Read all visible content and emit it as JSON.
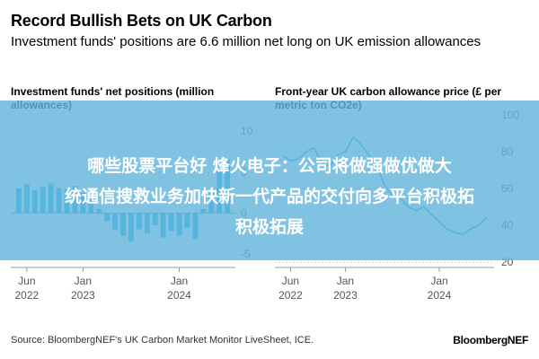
{
  "header": {
    "title": "Record Bullish Bets on UK Carbon",
    "subtitle": "Investment funds' positions are 6.6 million net long on UK emission allowances"
  },
  "chart_data": [
    {
      "type": "bar",
      "title": "Investment funds' net positions (million allowances)",
      "color": "#1ab5e8",
      "y_ticks": [
        "10",
        "5",
        "0",
        "-5"
      ],
      "ylim": [
        -6,
        12
      ],
      "x_ticks": [
        {
          "month": "Jun",
          "year": "2022"
        },
        {
          "month": "Jan",
          "year": "2023"
        },
        {
          "month": "Jan",
          "year": "2024"
        }
      ],
      "x": [
        "2022-05",
        "2022-06",
        "2022-07",
        "2022-08",
        "2022-09",
        "2022-10",
        "2022-11",
        "2022-12",
        "2023-01",
        "2023-02",
        "2023-03",
        "2023-04",
        "2023-05",
        "2023-06",
        "2023-07",
        "2023-08",
        "2023-09",
        "2023-10",
        "2023-11",
        "2023-12",
        "2024-01",
        "2024-02",
        "2024-03",
        "2024-04",
        "2024-05",
        "2024-06",
        "2024-07"
      ],
      "values": [
        3.0,
        3.5,
        2.8,
        3.2,
        3.6,
        3.1,
        2.9,
        3.3,
        2.5,
        1.8,
        0.5,
        -1.0,
        -2.0,
        -2.8,
        -3.5,
        -2.0,
        -2.5,
        -1.5,
        -3.0,
        -2.2,
        -2.8,
        -1.8,
        -3.2,
        0.5,
        2.5,
        5.0,
        6.6
      ]
    },
    {
      "type": "line",
      "title": "Front-year UK carbon allowance price (£ per metric ton CO2e)",
      "color": "#1ab5e8",
      "y_ticks": [
        "100",
        "80",
        "60",
        "40",
        "20"
      ],
      "ylim": [
        20,
        100
      ],
      "x_ticks": [
        {
          "month": "Jun",
          "year": "2022"
        },
        {
          "month": "Jan",
          "year": "2023"
        },
        {
          "month": "Jan",
          "year": "2024"
        }
      ],
      "x": [
        "2022-05",
        "2022-06",
        "2022-07",
        "2022-08",
        "2022-09",
        "2022-10",
        "2022-11",
        "2022-12",
        "2023-01",
        "2023-02",
        "2023-03",
        "2023-04",
        "2023-05",
        "2023-06",
        "2023-07",
        "2023-08",
        "2023-09",
        "2023-10",
        "2023-11",
        "2023-12",
        "2024-01",
        "2024-02",
        "2024-03",
        "2024-04",
        "2024-05",
        "2024-06",
        "2024-07"
      ],
      "values": [
        78,
        75,
        76,
        80,
        82,
        74,
        72,
        78,
        80,
        88,
        84,
        78,
        72,
        62,
        56,
        55,
        50,
        48,
        50,
        46,
        42,
        38,
        36,
        35,
        38,
        40,
        44
      ]
    }
  ],
  "overlay": {
    "line1": "哪些股票平台好 烽火电子：公司将做强做优做大",
    "line2": "统通信搜救业务加快新一代产品的交付向多平台积极拓",
    "line3": "积极拓展"
  },
  "footer": {
    "source": "Source: BloombergNEF's UK Carbon Market Monitor LiveSheet, ICE.",
    "brand": "BloombergNEF"
  }
}
